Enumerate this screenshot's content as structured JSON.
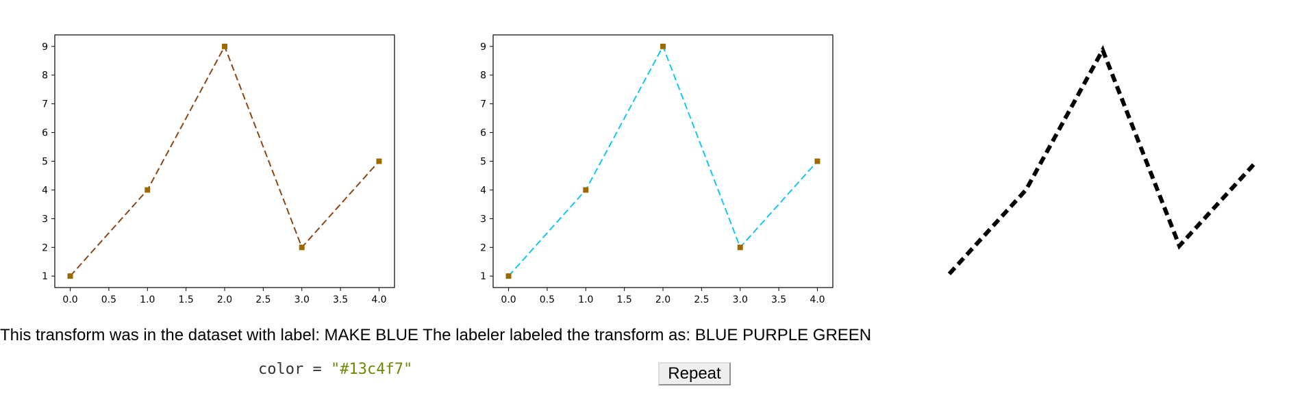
{
  "chart_data": [
    {
      "type": "line",
      "x": [
        0.0,
        1.0,
        2.0,
        3.0,
        4.0
      ],
      "series": [
        {
          "values": [
            1,
            4,
            9,
            2,
            5
          ],
          "color": "#8b4513",
          "linestyle": "dashed",
          "marker": "square",
          "marker_color": "#9c6a00"
        }
      ],
      "xlim": [
        -0.2,
        4.2
      ],
      "ylim": [
        0.6,
        9.4
      ],
      "x_ticks": [
        "0.0",
        "0.5",
        "1.0",
        "1.5",
        "2.0",
        "2.5",
        "3.0",
        "3.5",
        "4.0"
      ],
      "y_ticks": [
        "1",
        "2",
        "3",
        "4",
        "5",
        "6",
        "7",
        "8",
        "9"
      ],
      "grid": false
    },
    {
      "type": "line",
      "x": [
        0.0,
        1.0,
        2.0,
        3.0,
        4.0
      ],
      "series": [
        {
          "values": [
            1,
            4,
            9,
            2,
            5
          ],
          "color": "#13c4f7",
          "linestyle": "dashed",
          "marker": "square",
          "marker_color": "#9c6a00"
        }
      ],
      "xlim": [
        -0.2,
        4.2
      ],
      "ylim": [
        0.6,
        9.4
      ],
      "x_ticks": [
        "0.0",
        "0.5",
        "1.0",
        "1.5",
        "2.0",
        "2.5",
        "3.0",
        "3.5",
        "4.0"
      ],
      "y_ticks": [
        "1",
        "2",
        "3",
        "4",
        "5",
        "6",
        "7",
        "8",
        "9"
      ],
      "grid": false
    }
  ],
  "sketch": {
    "values": [
      1,
      4,
      9,
      2,
      5
    ],
    "color": "#000000",
    "linestyle": "dashed"
  },
  "caption": {
    "text": "This transform was in the dataset with label: MAKE BLUE The labeler labeled the transform as: BLUE PURPLE GREEN"
  },
  "code": {
    "variable": "color",
    "operator": "=",
    "value": "\"#13c4f7\""
  },
  "controls": {
    "repeat_label": "Repeat"
  }
}
